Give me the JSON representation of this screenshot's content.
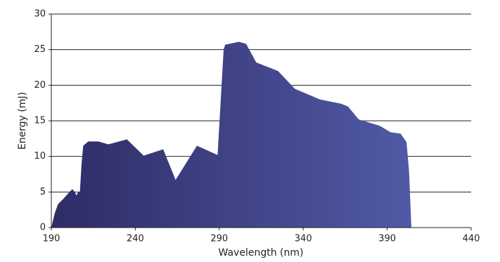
{
  "chart_data": {
    "type": "area",
    "x_label": "Wavelength (nm)",
    "y_label": "Energy (mJ)",
    "x": [
      190,
      192,
      194,
      197,
      200,
      202.5,
      204,
      205,
      206,
      207,
      208,
      209,
      212,
      218,
      224,
      235,
      245,
      256.6,
      264,
      276.7,
      289,
      292.6,
      293.5,
      301.8,
      306,
      312,
      325,
      335,
      350,
      362.5,
      366.7,
      373,
      385.6,
      392,
      398,
      401.5,
      403,
      404.4
    ],
    "series": [
      {
        "name": "Energy",
        "color": "#3f4490",
        "values": [
          0,
          2,
          3.3,
          4,
          4.8,
          5.4,
          5,
          4.5,
          5,
          5,
          9,
          11.5,
          12.1,
          12.1,
          11.7,
          12.4,
          10.1,
          11,
          6.7,
          11.5,
          10.2,
          25,
          25.7,
          26.1,
          25.8,
          23.2,
          22,
          19.5,
          18,
          17.4,
          17,
          15.2,
          14.3,
          13.4,
          13.2,
          12,
          8,
          0
        ]
      }
    ],
    "xlim": [
      190,
      440
    ],
    "xticks": [
      190,
      240,
      290,
      340,
      390,
      440
    ],
    "ylim": [
      0,
      30
    ],
    "yticks": [
      0,
      5,
      10,
      15,
      20,
      25,
      30
    ],
    "grid": true
  }
}
